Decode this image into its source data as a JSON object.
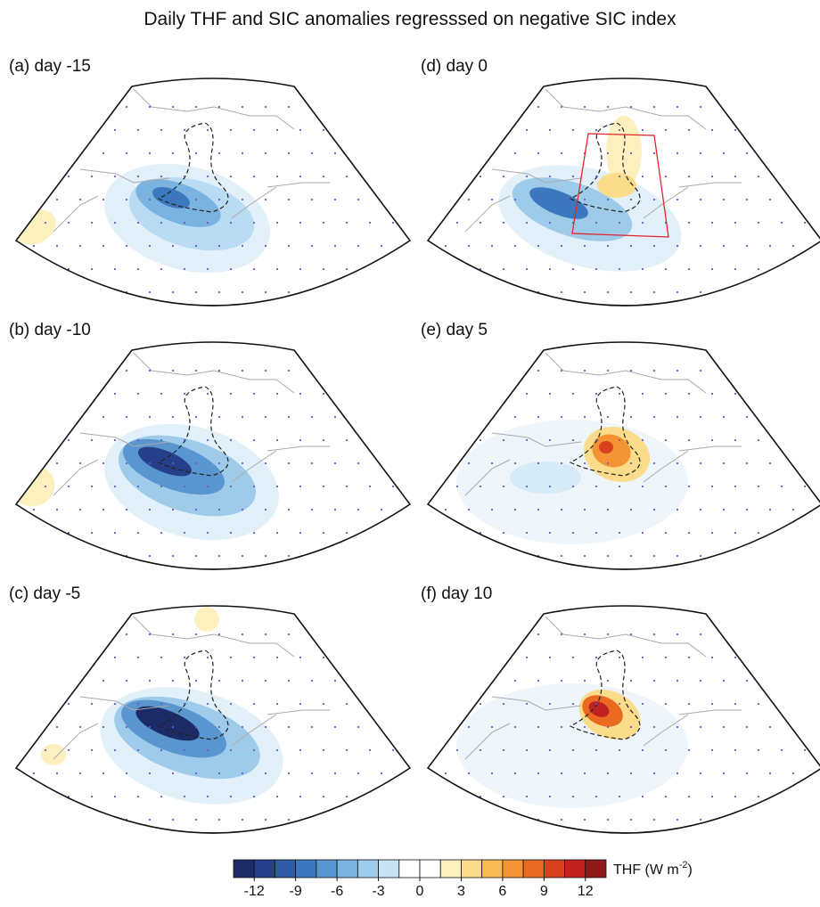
{
  "title": "Daily THF and SIC anomalies regresssed on negative SIC index",
  "panels": [
    {
      "label": "(a) day -15"
    },
    {
      "label": "(b) day -10"
    },
    {
      "label": "(c) day -5"
    },
    {
      "label": "(d) day 0"
    },
    {
      "label": "(e) day 5"
    },
    {
      "label": "(f) day 10"
    }
  ],
  "colorbar": {
    "lim": [
      -13.5,
      13.5
    ],
    "ticks": [
      -12,
      -9,
      -6,
      -3,
      0,
      3,
      6,
      9,
      12
    ],
    "colors": [
      "#1c2a66",
      "#253f8a",
      "#2e5aa6",
      "#3c78bd",
      "#5996d0",
      "#7ab3e0",
      "#9fcbeb",
      "#c6e2f5",
      "#ffffff",
      "#ffffff",
      "#fdf0bf",
      "#fbdc8a",
      "#f8bb55",
      "#f39333",
      "#ea6a22",
      "#d9401e",
      "#c02222",
      "#8e1a1a"
    ],
    "label": [
      "THF (W m",
      "-2",
      ")"
    ]
  }
}
